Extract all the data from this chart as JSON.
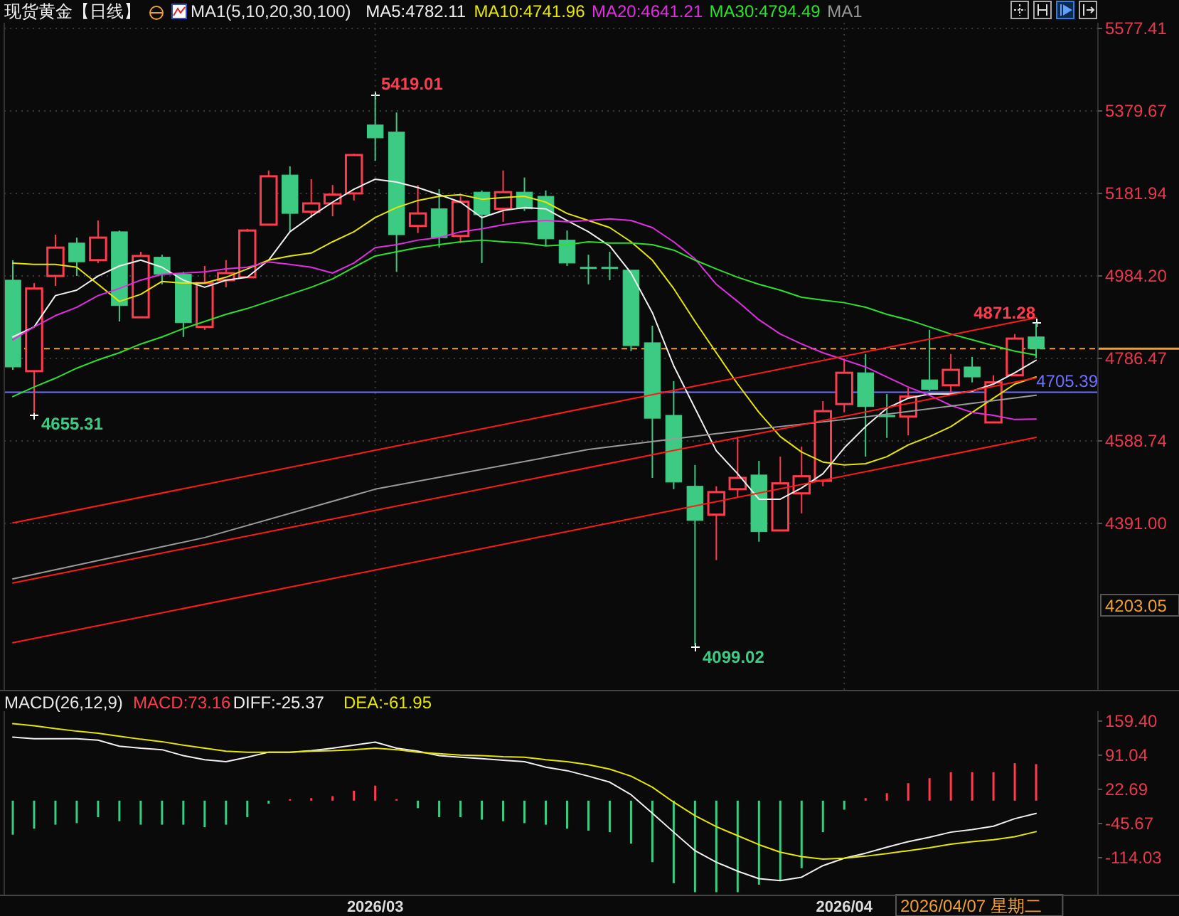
{
  "chart_data": [
    {
      "type": "candlestick",
      "title": "现货黄金【日线】",
      "legend_title": "MA1(5,10,20,30,100)",
      "legend": "top",
      "grid": true,
      "tick_labels": "y",
      "categories": [
        null,
        null,
        null,
        null,
        null,
        null,
        null,
        null,
        null,
        null,
        null,
        null,
        null,
        null,
        null,
        null,
        null,
        "2026/03",
        null,
        null,
        null,
        null,
        null,
        null,
        null,
        null,
        null,
        null,
        null,
        null,
        null,
        null,
        null,
        null,
        null,
        null,
        null,
        null,
        null,
        "2026/04",
        null,
        null,
        null,
        null,
        null,
        null,
        null,
        null,
        null
      ],
      "ylim": [
        3992,
        5591
      ],
      "yticks": [
        5577.41,
        5379.67,
        5181.94,
        {
          "value": 4984.2,
          "label": "4984.20"
        },
        4786.47,
        4588.74,
        {
          "value": 4391,
          "label": "4391.00"
        }
      ],
      "ohlc": [
        [
          4974,
          5022,
          4759,
          4766
        ],
        [
          4756,
          4967,
          4655.31,
          4954
        ],
        [
          4984,
          5083,
          4960,
          5052
        ],
        [
          5063,
          5076,
          4984,
          5018
        ],
        [
          5022,
          5117,
          5015,
          5076
        ],
        [
          5090,
          5093,
          4875,
          4913
        ],
        [
          4885,
          5042,
          4885,
          5032
        ],
        [
          5029,
          5035,
          4964,
          4988
        ],
        [
          4988,
          4994,
          4838,
          4872
        ],
        [
          4862,
          5008,
          4855,
          4967
        ],
        [
          4974,
          5022,
          4957,
          4991
        ],
        [
          4981,
          5097,
          4981,
          5093
        ],
        [
          5107,
          5237,
          5107,
          5223
        ],
        [
          5226,
          5247,
          5090,
          5134
        ],
        [
          5138,
          5216,
          5124,
          5158
        ],
        [
          5158,
          5202,
          5127,
          5179
        ],
        [
          5182,
          5277,
          5165,
          5274
        ],
        [
          5346,
          5419.01,
          5260,
          5315
        ],
        [
          5329,
          5376,
          4994,
          5083
        ],
        [
          5104,
          5202,
          5087,
          5134
        ],
        [
          5145,
          5192,
          5052,
          5076
        ],
        [
          5080,
          5175,
          5063,
          5162
        ],
        [
          5185,
          5189,
          5015,
          5131
        ],
        [
          5145,
          5237,
          5114,
          5185
        ],
        [
          5185,
          5220,
          5140,
          5145
        ],
        [
          5175,
          5189,
          5056,
          5073
        ],
        [
          5070,
          5093,
          5008,
          5015
        ],
        [
          5005,
          5035,
          4964,
          5005
        ],
        [
          5005,
          5042,
          4974,
          5005
        ],
        [
          4998,
          4998,
          4804,
          4817
        ],
        [
          4824,
          4865,
          4500,
          4643
        ],
        [
          4650,
          4732,
          4473,
          4490
        ],
        [
          4480,
          4531,
          4099.02,
          4398
        ],
        [
          4412,
          4480,
          4303,
          4466
        ],
        [
          4473,
          4599,
          4453,
          4500
        ],
        [
          4507,
          4541,
          4347,
          4371
        ],
        [
          4374,
          4551,
          4374,
          4487
        ],
        [
          4463,
          4575,
          4415,
          4504
        ],
        [
          4493,
          4684,
          4480,
          4660
        ],
        [
          4677,
          4786,
          4657,
          4752
        ],
        [
          4752,
          4797,
          4551,
          4671
        ],
        [
          4650,
          4701,
          4596,
          4650
        ],
        [
          4647,
          4715,
          4602,
          4695
        ],
        [
          4735,
          4855,
          4708,
          4712
        ],
        [
          4722,
          4797,
          4701,
          4759
        ],
        [
          4766,
          4790,
          4729,
          4742
        ],
        [
          4633,
          4746,
          4633,
          4729
        ],
        [
          4746,
          4845,
          4746,
          4834
        ],
        [
          4838,
          4871.28,
          4787,
          4810
        ]
      ],
      "colors": [
        "#3dcb84",
        "#ff3b4e",
        "#ff3b4e",
        "#3dcb84",
        "#ff3b4e",
        "#3dcb84",
        "#ff3b4e",
        "#3dcb84",
        "#3dcb84",
        "#ff3b4e",
        "#ff3b4e",
        "#ff3b4e",
        "#ff3b4e",
        "#3dcb84",
        "#ff3b4e",
        "#ff3b4e",
        "#ff3b4e",
        "#3dcb84",
        "#3dcb84",
        "#ff3b4e",
        "#3dcb84",
        "#ff3b4e",
        "#3dcb84",
        "#ff3b4e",
        "#3dcb84",
        "#3dcb84",
        "#3dcb84",
        "#3dcb84",
        "#3dcb84",
        "#3dcb84",
        "#3dcb84",
        "#3dcb84",
        "#3dcb84",
        "#ff3b4e",
        "#ff3b4e",
        "#3dcb84",
        "#ff3b4e",
        "#ff3b4e",
        "#ff3b4e",
        "#ff3b4e",
        "#3dcb84",
        "#3dcb84",
        "#ff3b4e",
        "#3dcb84",
        "#ff3b4e",
        "#3dcb84",
        "#ff3b4e",
        "#ff3b4e",
        "#3dcb84"
      ],
      "series": [
        {
          "type": "line",
          "name": "MA5:4782.11",
          "color": "#f0f0f0",
          "values": [
            4838,
            4862,
            4937,
            4950,
            4984,
            5008,
            5022,
            5005,
            4974,
            4957,
            4974,
            4981,
            5022,
            5090,
            5127,
            5161,
            5192,
            5216,
            5209,
            5196,
            5179,
            5161,
            5124,
            5141,
            5148,
            5145,
            5117,
            5090,
            5056,
            4991,
            4896,
            4769,
            4667,
            4565,
            4510,
            4449,
            4449,
            4476,
            4510,
            4572,
            4623,
            4667,
            4691,
            4701,
            4701,
            4708,
            4725,
            4752,
            4782.11
          ]
        },
        {
          "type": "line",
          "name": "MA10:4741.96",
          "color": "#e6e600",
          "values": [
            5015,
            5012,
            5012,
            5005,
            4964,
            4923,
            4940,
            4971,
            4967,
            4967,
            4981,
            5001,
            5022,
            5032,
            5039,
            5066,
            5090,
            5124,
            5148,
            5165,
            5175,
            5179,
            5168,
            5172,
            5175,
            5161,
            5134,
            5117,
            5100,
            5066,
            5022,
            4954,
            4875,
            4800,
            4725,
            4657,
            4599,
            4562,
            4538,
            4531,
            4534,
            4551,
            4579,
            4599,
            4623,
            4657,
            4691,
            4725,
            4741.96
          ]
        },
        {
          "type": "line",
          "name": "MA20:4641.21",
          "color": "#e22ee2",
          "values": [
            4831,
            4862,
            4889,
            4909,
            4937,
            4954,
            4974,
            4988,
            4991,
            4994,
            5001,
            5005,
            5018,
            5012,
            5005,
            4991,
            5015,
            5052,
            5059,
            5070,
            5076,
            5090,
            5097,
            5107,
            5114,
            5117,
            5114,
            5117,
            5121,
            5117,
            5100,
            5066,
            5025,
            4964,
            4923,
            4879,
            4845,
            4821,
            4800,
            4783,
            4766,
            4742,
            4718,
            4698,
            4674,
            4657,
            4650,
            4640,
            4641.21
          ]
        },
        {
          "type": "line",
          "name": "MA30:4794.49",
          "color": "#2ee02e",
          "values": [
            4695,
            4718,
            4739,
            4763,
            4783,
            4800,
            4821,
            4838,
            4858,
            4875,
            4892,
            4906,
            4923,
            4940,
            4957,
            4977,
            5005,
            5032,
            5042,
            5052,
            5059,
            5066,
            5070,
            5066,
            5063,
            5056,
            5059,
            5066,
            5063,
            5063,
            5059,
            5046,
            5022,
            5001,
            4981,
            4964,
            4950,
            4933,
            4926,
            4920,
            4909,
            4892,
            4879,
            4862,
            4845,
            4831,
            4817,
            4804,
            4794.49
          ]
        },
        {
          "type": "line",
          "name": "MA1",
          "color": "#9a9a9a",
          "values": [
            4258,
            null,
            null,
            null,
            null,
            null,
            null,
            null,
            null,
            4357,
            null,
            null,
            null,
            null,
            null,
            null,
            null,
            4473,
            null,
            null,
            null,
            null,
            null,
            null,
            null,
            null,
            null,
            4568,
            null,
            null,
            null,
            null,
            null,
            4606,
            null,
            null,
            null,
            null,
            null,
            4640,
            null,
            null,
            null,
            null,
            null,
            null,
            null,
            null,
            4698
          ]
        },
        {
          "type": "line",
          "color": "#ff1a1a",
          "values": [
            4392,
            null,
            null,
            null,
            null,
            null,
            null,
            null,
            null,
            null,
            null,
            null,
            null,
            null,
            null,
            null,
            null,
            null,
            null,
            null,
            null,
            null,
            null,
            null,
            null,
            null,
            null,
            null,
            null,
            null,
            null,
            null,
            null,
            null,
            null,
            null,
            null,
            null,
            null,
            null,
            null,
            null,
            null,
            null,
            null,
            null,
            null,
            null,
            4884
          ]
        },
        {
          "type": "line",
          "color": "#ff1a1a",
          "values": [
            4248,
            null,
            null,
            null,
            null,
            null,
            null,
            null,
            null,
            null,
            null,
            null,
            null,
            null,
            null,
            null,
            null,
            null,
            null,
            null,
            null,
            null,
            null,
            null,
            null,
            null,
            null,
            null,
            null,
            null,
            null,
            null,
            null,
            null,
            null,
            null,
            null,
            null,
            null,
            null,
            null,
            null,
            null,
            null,
            null,
            null,
            null,
            null,
            4740
          ]
        },
        {
          "type": "line",
          "color": "#ff1a1a",
          "values": [
            4105,
            null,
            null,
            null,
            null,
            null,
            null,
            null,
            null,
            null,
            null,
            null,
            null,
            null,
            null,
            null,
            null,
            null,
            null,
            null,
            null,
            null,
            null,
            null,
            null,
            null,
            null,
            null,
            null,
            null,
            null,
            null,
            null,
            null,
            null,
            null,
            null,
            null,
            null,
            null,
            null,
            null,
            null,
            null,
            null,
            null,
            null,
            null,
            4597
          ]
        }
      ],
      "ref_lines": [
        {
          "axis": "y",
          "value": 4810,
          "color": "#f0a030",
          "line_style": "dashed"
        },
        {
          "axis": "y",
          "value": 4705.39,
          "label": "4705.39",
          "color": "#7070ff"
        }
      ],
      "annotations": [
        "5419.01",
        "4655.31",
        "4099.02",
        "4871.28",
        "4203.05"
      ]
    },
    {
      "type": "bar",
      "legend_title": "MACD(26,12,9)",
      "legend": "top left",
      "grid": false,
      "categories": [
        null,
        null,
        null,
        null,
        null,
        null,
        null,
        null,
        null,
        null,
        null,
        null,
        null,
        null,
        null,
        null,
        null,
        "2026/03",
        null,
        null,
        null,
        null,
        null,
        null,
        null,
        null,
        null,
        null,
        null,
        null,
        null,
        null,
        null,
        null,
        null,
        null,
        null,
        null,
        null,
        "2026/04",
        null,
        null,
        null,
        null,
        null,
        null,
        null,
        null,
        null
      ],
      "ylim": [
        -188,
        179
      ],
      "yticks": [
        {
          "value": 159.4,
          "label": "159.40"
        },
        91.04,
        22.69,
        -45.67,
        -114.03
      ],
      "series": [
        {
          "type": "bar",
          "name": "MACD:73.16",
          "color": "#ff3b4e",
          "values": [
            -68,
            -56,
            -48,
            -45,
            -33,
            -41,
            -48,
            -48,
            -48,
            -53,
            -48,
            -33,
            -6,
            3,
            5,
            9,
            20,
            30,
            3,
            -15,
            -33,
            -33,
            -38,
            -41,
            -45,
            -48,
            -56,
            -60,
            -63,
            -86,
            -123,
            -165,
            -183,
            -183,
            -183,
            -168,
            -160,
            -135,
            -63,
            -18,
            5,
            15,
            35,
            45,
            57,
            57,
            57,
            75,
            73.16
          ],
          "colors": [
            "#3dcb84",
            "#3dcb84",
            "#3dcb84",
            "#3dcb84",
            "#3dcb84",
            "#3dcb84",
            "#3dcb84",
            "#3dcb84",
            "#3dcb84",
            "#3dcb84",
            "#3dcb84",
            "#3dcb84",
            "#3dcb84",
            "#ff3b4e",
            "#ff3b4e",
            "#ff3b4e",
            "#ff3b4e",
            "#ff3b4e",
            "#ff3b4e",
            "#3dcb84",
            "#3dcb84",
            "#3dcb84",
            "#3dcb84",
            "#3dcb84",
            "#3dcb84",
            "#3dcb84",
            "#3dcb84",
            "#3dcb84",
            "#3dcb84",
            "#3dcb84",
            "#3dcb84",
            "#3dcb84",
            "#3dcb84",
            "#3dcb84",
            "#3dcb84",
            "#3dcb84",
            "#3dcb84",
            "#3dcb84",
            "#3dcb84",
            "#3dcb84",
            "#ff3b4e",
            "#ff3b4e",
            "#ff3b4e",
            "#ff3b4e",
            "#ff3b4e",
            "#ff3b4e",
            "#ff3b4e",
            "#ff3b4e",
            "#ff3b4e"
          ]
        },
        {
          "type": "line",
          "name": "DIFF:-25.37",
          "color": "#f0f0f0",
          "values": [
            127,
            124,
            124,
            124,
            121,
            109,
            105,
            102,
            90,
            82,
            78,
            87,
            97,
            97,
            100,
            105,
            111,
            117,
            105,
            99,
            90,
            87,
            84,
            81,
            78,
            67,
            60,
            49,
            37,
            12,
            -25,
            -63,
            -100,
            -123,
            -141,
            -156,
            -160,
            -153,
            -130,
            -115,
            -105,
            -93,
            -82,
            -73,
            -63,
            -58,
            -51,
            -36,
            -25.37
          ]
        },
        {
          "type": "line",
          "name": "DEA:-61.95",
          "color": "#e6e600",
          "values": [
            154,
            150,
            144,
            139,
            135,
            129,
            123,
            118,
            111,
            105,
            99,
            97,
            97,
            97,
            99,
            100,
            102,
            105,
            102,
            97,
            94,
            91,
            90,
            88,
            87,
            82,
            78,
            72,
            63,
            49,
            27,
            -3,
            -30,
            -52,
            -70,
            -88,
            -103,
            -112,
            -117,
            -115,
            -111,
            -106,
            -100,
            -94,
            -87,
            -82,
            -78,
            -72,
            -61.95
          ]
        }
      ],
      "annotations": [
        "2026/04/07 星期二"
      ]
    }
  ]
}
